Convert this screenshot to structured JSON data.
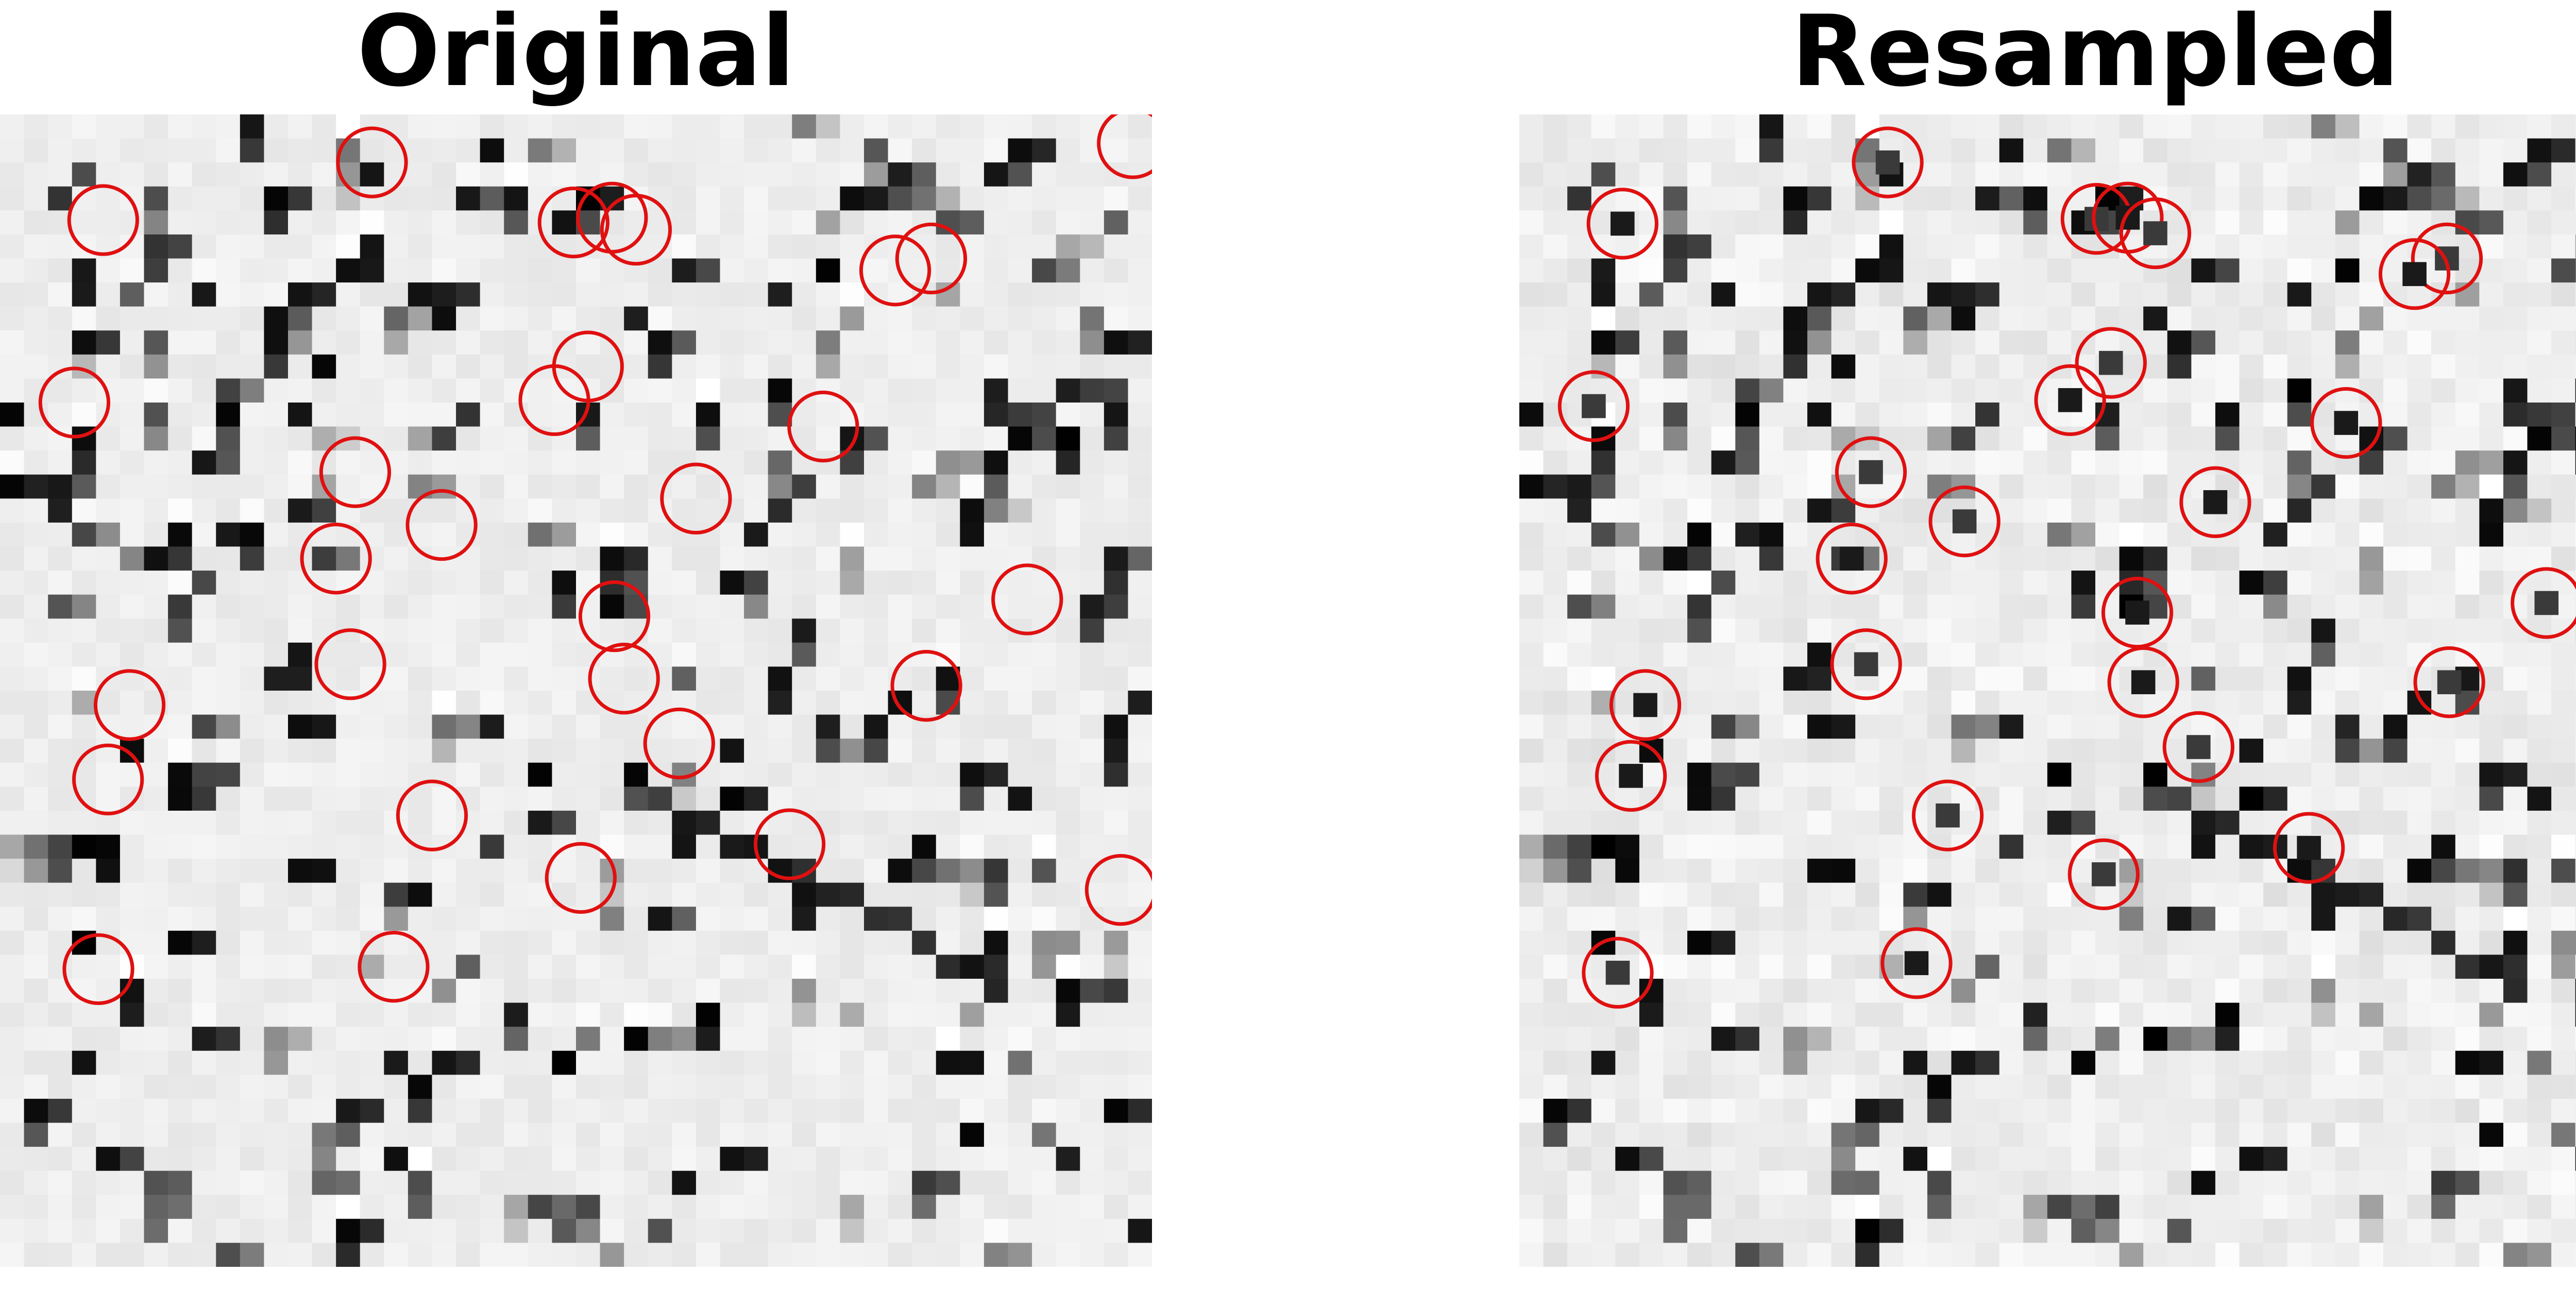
{
  "panels": [
    {
      "title": "Original"
    },
    {
      "title": "Resampled"
    }
  ],
  "colors": {
    "background": "#ffffff",
    "grid_light": "#e8e8e8",
    "circle": "#e01010"
  },
  "grid": {
    "rows": 48,
    "cols": 48
  }
}
